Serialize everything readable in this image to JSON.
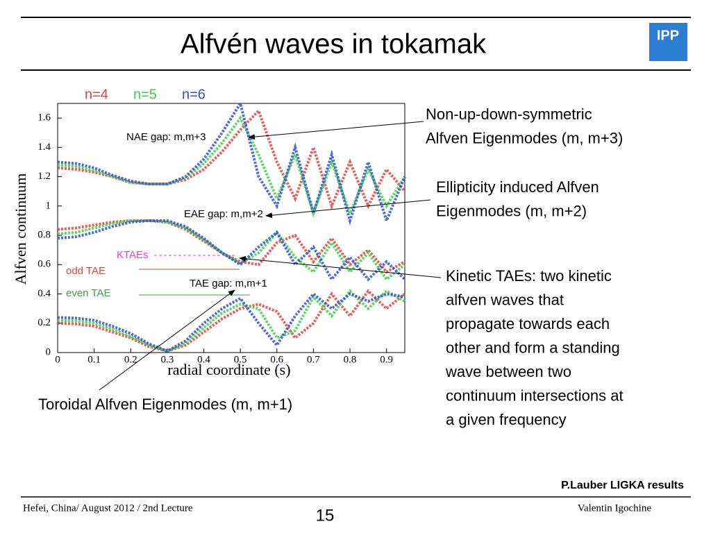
{
  "header": {
    "title": "Alfvén waves in tokamak",
    "logo": "IPP"
  },
  "chart_data": {
    "type": "line",
    "xlabel": "radial coordinate (s)",
    "ylabel": "Alfven continuum",
    "xlim": [
      0,
      0.95
    ],
    "ylim": [
      0,
      1.7
    ],
    "xticks": [
      0,
      0.1,
      0.2,
      0.3,
      0.4,
      0.5,
      0.6,
      0.7,
      0.8,
      0.9
    ],
    "yticks": [
      0,
      0.2,
      0.4,
      0.6,
      0.8,
      1,
      1.2,
      1.4,
      1.6
    ],
    "x": [
      0,
      0.05,
      0.1,
      0.15,
      0.2,
      0.25,
      0.3,
      0.35,
      0.4,
      0.45,
      0.5,
      0.55,
      0.6,
      0.65,
      0.7,
      0.75,
      0.8,
      0.85,
      0.9,
      0.95
    ],
    "series": [
      {
        "name": "n=4",
        "color": "#e0443a",
        "branches": [
          [
            0.2,
            0.195,
            0.18,
            0.14,
            0.1,
            0.04,
            0.01,
            0.05,
            0.14,
            0.23,
            0.3,
            0.33,
            0.28,
            0.1,
            0.2,
            0.4,
            0.25,
            0.42,
            0.3,
            0.4
          ],
          [
            0.84,
            0.85,
            0.87,
            0.89,
            0.9,
            0.9,
            0.89,
            0.84,
            0.76,
            0.68,
            0.62,
            0.6,
            0.75,
            0.8,
            0.62,
            0.78,
            0.6,
            0.7,
            0.55,
            0.62
          ],
          [
            1.26,
            1.25,
            1.23,
            1.2,
            1.16,
            1.15,
            1.15,
            1.18,
            1.25,
            1.37,
            1.52,
            1.65,
            1.3,
            1.05,
            1.4,
            1.0,
            1.3,
            1.0,
            1.25,
            1.1
          ]
        ]
      },
      {
        "name": "n=5",
        "color": "#3ed04a",
        "branches": [
          [
            0.22,
            0.215,
            0.2,
            0.16,
            0.11,
            0.05,
            0.01,
            0.06,
            0.17,
            0.27,
            0.33,
            0.3,
            0.1,
            0.15,
            0.38,
            0.25,
            0.42,
            0.3,
            0.42,
            0.35
          ],
          [
            0.81,
            0.82,
            0.85,
            0.88,
            0.9,
            0.9,
            0.89,
            0.85,
            0.77,
            0.68,
            0.61,
            0.68,
            0.82,
            0.65,
            0.55,
            0.75,
            0.55,
            0.68,
            0.5,
            0.6
          ],
          [
            1.28,
            1.27,
            1.24,
            1.2,
            1.16,
            1.15,
            1.15,
            1.19,
            1.29,
            1.43,
            1.6,
            1.35,
            1.05,
            1.35,
            0.95,
            1.3,
            0.95,
            1.25,
            1.0,
            1.2
          ]
        ]
      },
      {
        "name": "n=6",
        "color": "#2c50d8",
        "branches": [
          [
            0.24,
            0.235,
            0.22,
            0.18,
            0.13,
            0.06,
            0.01,
            0.08,
            0.2,
            0.3,
            0.37,
            0.2,
            0.05,
            0.25,
            0.4,
            0.3,
            0.4,
            0.35,
            0.4,
            0.38
          ],
          [
            0.78,
            0.79,
            0.82,
            0.86,
            0.89,
            0.9,
            0.9,
            0.86,
            0.78,
            0.68,
            0.6,
            0.72,
            0.82,
            0.6,
            0.72,
            0.5,
            0.65,
            0.5,
            0.62,
            0.5
          ],
          [
            1.3,
            1.29,
            1.26,
            1.21,
            1.17,
            1.15,
            1.15,
            1.2,
            1.32,
            1.5,
            1.7,
            1.2,
            1.0,
            1.4,
            0.95,
            1.35,
            0.9,
            1.3,
            0.9,
            1.2
          ]
        ]
      }
    ],
    "annotations": [
      "NAE gap: m,m+3",
      "EAE gap: m,m+2",
      "KTAEs",
      "odd TAE",
      "TAE gap: m,m+1",
      "even TAE"
    ]
  },
  "callouts": {
    "nae": [
      "Non-up-down-symmetric",
      "Alfven Eigenmodes (m, m+3)"
    ],
    "eae": [
      "Ellipticity induced Alfven",
      "Eigenmodes (m, m+2)"
    ],
    "ktae": [
      "Kinetic TAEs: two kinetic",
      "alfven waves that",
      "propagate towards each",
      "other and form a standing",
      "wave between two",
      "continuum intersections at",
      "a given frequency"
    ],
    "tae": "Toroidal Alfven Eigenmodes (m, m+1)"
  },
  "credit": "P.Lauber LIGKA results",
  "footer": {
    "left": "Hefei, China/ August 2012 / 2nd Lecture",
    "page": "15",
    "right": "Valentin Igochine"
  }
}
